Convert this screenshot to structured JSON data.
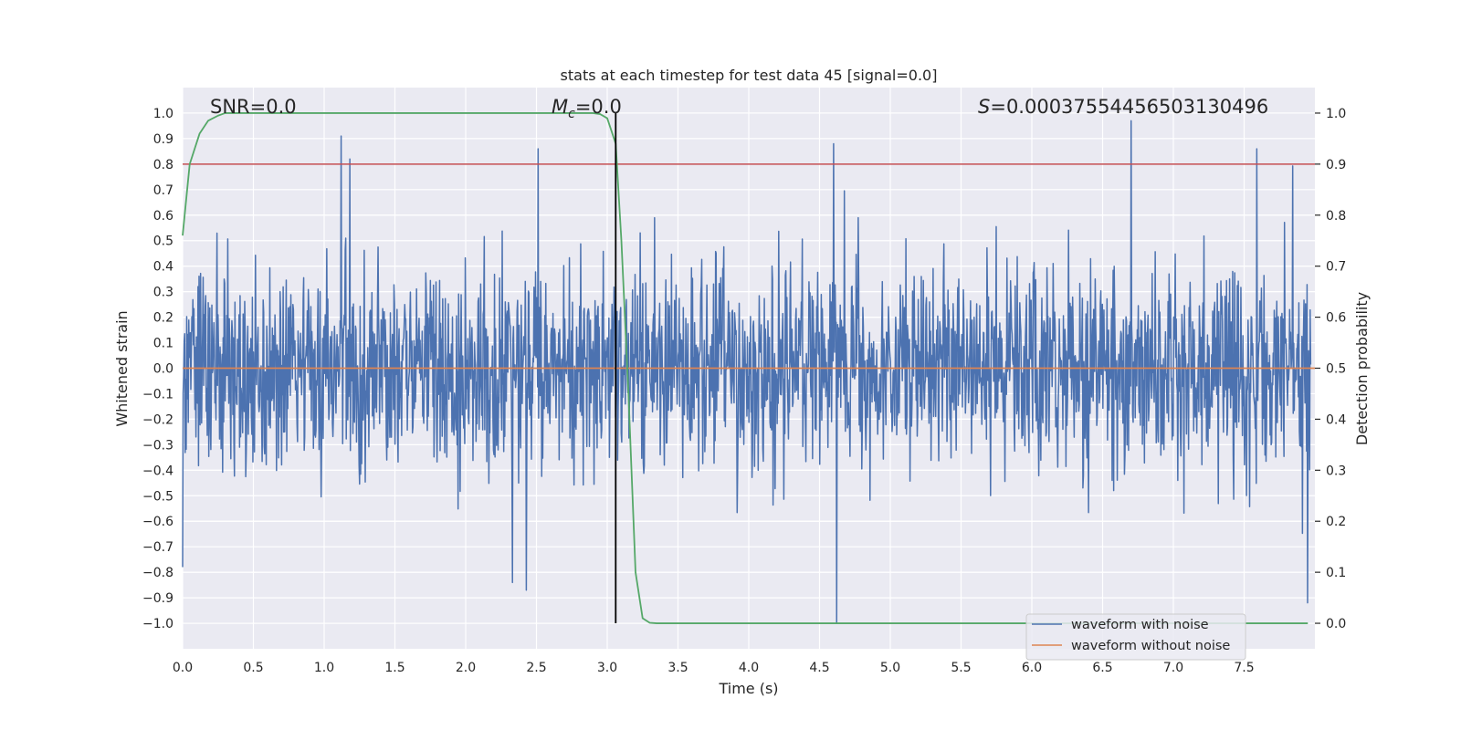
{
  "chart_data": {
    "type": "line",
    "title": "stats at each timestep for test data 45 [signal=0.0]",
    "xlabel": "Time (s)",
    "ylabel": "Whitened strain",
    "ylabel_right": "Detection probability",
    "xlim": [
      0.0,
      8.0
    ],
    "ylim": [
      -1.1,
      1.1
    ],
    "ylim_right": [
      -0.05,
      1.05
    ],
    "xticks": [
      "0.0",
      "0.5",
      "1.0",
      "1.5",
      "2.0",
      "2.5",
      "3.0",
      "3.5",
      "4.0",
      "4.5",
      "5.0",
      "5.5",
      "6.0",
      "6.5",
      "7.0",
      "7.5"
    ],
    "yticks": [
      "1.0",
      "0.9",
      "0.8",
      "0.7",
      "0.6",
      "0.5",
      "0.4",
      "0.3",
      "0.2",
      "0.1",
      "0.0",
      "−0.1",
      "−0.2",
      "−0.3",
      "−0.4",
      "−0.5",
      "−0.6",
      "−0.7",
      "−0.8",
      "−0.9",
      "−1.0"
    ],
    "yticks_right": [
      "1.0",
      "0.9",
      "0.8",
      "0.7",
      "0.6",
      "0.5",
      "0.4",
      "0.3",
      "0.2",
      "0.1",
      "0.0"
    ],
    "grid": true,
    "annotations": {
      "snr": "SNR=0.0",
      "mc_symbol": "M",
      "mc_subscript": "c",
      "mc_value": "=0.0",
      "s_symbol": "S",
      "s_value": "=0.0003755445650313049​6"
    },
    "threshold": {
      "value": 0.9,
      "axis": "right",
      "color": "#c44e52"
    },
    "detection_time": 3.06,
    "series": [
      {
        "name": "waveform with noise",
        "axis": "left",
        "color": "#4c72b0",
        "description": "dense whitened noise, typical amplitude about ±0.4, with spikes up to about ±1.0",
        "notable_spikes": [
          {
            "t": 0.0,
            "v": -0.78
          },
          {
            "t": 1.12,
            "v": 0.91
          },
          {
            "t": 1.18,
            "v": 0.82
          },
          {
            "t": 2.33,
            "v": -0.84
          },
          {
            "t": 2.43,
            "v": -0.87
          },
          {
            "t": 2.51,
            "v": 0.86
          },
          {
            "t": 4.6,
            "v": 0.88
          },
          {
            "t": 4.62,
            "v": -1.0
          },
          {
            "t": 6.7,
            "v": 0.97
          },
          {
            "t": 7.59,
            "v": 0.86
          },
          {
            "t": 7.95,
            "v": -0.92
          }
        ]
      },
      {
        "name": "waveform without noise",
        "axis": "left",
        "color": "#dd8452",
        "x": [
          0.0,
          8.0
        ],
        "y": [
          0.0,
          0.0
        ]
      },
      {
        "name": "detection probability",
        "axis": "right",
        "color": "#55a868",
        "x": [
          0.0,
          0.05,
          0.12,
          0.18,
          0.25,
          0.3,
          0.4,
          0.5,
          1.0,
          2.0,
          2.9,
          2.95,
          3.0,
          3.06,
          3.1,
          3.15,
          3.2,
          3.25,
          3.3,
          3.35,
          4.0,
          5.0,
          6.0,
          7.0,
          7.95
        ],
        "y": [
          0.76,
          0.9,
          0.96,
          0.985,
          0.995,
          1.0,
          1.0,
          1.0,
          1.0,
          1.0,
          1.0,
          0.998,
          0.99,
          0.94,
          0.75,
          0.45,
          0.1,
          0.01,
          0.001,
          0.0,
          0.0,
          0.0,
          0.0,
          0.0,
          0.0
        ]
      }
    ],
    "legend": {
      "position": "lower right",
      "entries": [
        {
          "label": "waveform with noise",
          "color": "#4c72b0"
        },
        {
          "label": "waveform without noise",
          "color": "#dd8452"
        }
      ]
    }
  }
}
